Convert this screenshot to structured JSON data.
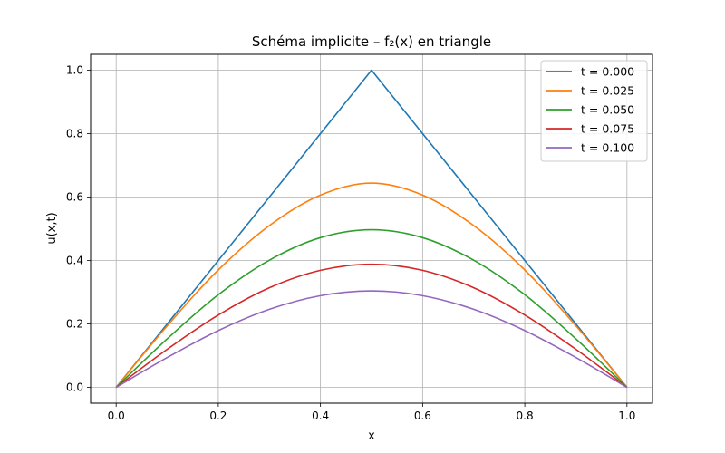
{
  "chart_data": {
    "type": "line",
    "title": "Schéma implicite – f₂(x) en triangle",
    "xlabel": "x",
    "ylabel": "u(x,t)",
    "xlim": [
      -0.05,
      1.05
    ],
    "ylim": [
      -0.05,
      1.05
    ],
    "xticks": [
      0.0,
      0.2,
      0.4,
      0.6,
      0.8,
      1.0
    ],
    "yticks": [
      0.0,
      0.2,
      0.4,
      0.6,
      0.8,
      1.0
    ],
    "xtick_labels": [
      "0.0",
      "0.2",
      "0.4",
      "0.6",
      "0.8",
      "1.0"
    ],
    "ytick_labels": [
      "0.0",
      "0.2",
      "0.4",
      "0.6",
      "0.8",
      "1.0"
    ],
    "grid": true,
    "legend_position": "top-right",
    "x": [
      0.0,
      0.1,
      0.2,
      0.3,
      0.4,
      0.5,
      0.6,
      0.7,
      0.8,
      0.9,
      1.0
    ],
    "series": [
      {
        "name": "t = 0.000",
        "color": "#1f77b4",
        "values": [
          0.0,
          0.2,
          0.4,
          0.6,
          0.8,
          1.0,
          0.8,
          0.6,
          0.4,
          0.2,
          0.0
        ]
      },
      {
        "name": "t = 0.025",
        "color": "#ff7f0e",
        "values": [
          0.0,
          0.194,
          0.37,
          0.51,
          0.606,
          0.644,
          0.606,
          0.51,
          0.37,
          0.194,
          0.0
        ]
      },
      {
        "name": "t = 0.050",
        "color": "#2ca02c",
        "values": [
          0.0,
          0.153,
          0.292,
          0.401,
          0.472,
          0.497,
          0.472,
          0.401,
          0.292,
          0.153,
          0.0
        ]
      },
      {
        "name": "t = 0.075",
        "color": "#d62728",
        "values": [
          0.0,
          0.12,
          0.228,
          0.314,
          0.369,
          0.388,
          0.369,
          0.314,
          0.228,
          0.12,
          0.0
        ]
      },
      {
        "name": "t = 0.100",
        "color": "#9467bd",
        "values": [
          0.0,
          0.094,
          0.179,
          0.246,
          0.289,
          0.304,
          0.289,
          0.246,
          0.179,
          0.094,
          0.0
        ]
      }
    ]
  }
}
